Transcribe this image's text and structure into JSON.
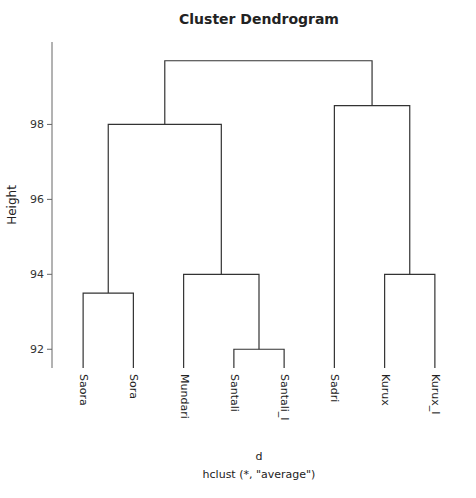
{
  "chart_data": {
    "type": "dendrogram",
    "title": "Cluster Dendrogram",
    "xlabel": [
      "d",
      "hclust (*, \"average\")"
    ],
    "ylabel": "Height",
    "categories": [
      "Saora",
      "Sora",
      "Mundari",
      "Santali",
      "Santali_I",
      "Sadri",
      "Kurux",
      "Kurux_I"
    ],
    "merges": [
      {
        "left": "Santali",
        "right": "Santali_I",
        "height": 92.0
      },
      {
        "left": "Saora",
        "right": "Sora",
        "height": 93.5
      },
      {
        "left": "Mundari",
        "right": 0,
        "height": 94.0
      },
      {
        "left": "Kurux",
        "right": "Kurux_I",
        "height": 94.0
      },
      {
        "left": 1,
        "right": 2,
        "height": 98.0
      },
      {
        "left": "Sadri",
        "right": 3,
        "height": 98.5
      },
      {
        "left": 4,
        "right": 5,
        "height": 99.7
      }
    ],
    "color": "#333333",
    "ylim": [
      91.5,
      100.2
    ],
    "yticks": [
      92,
      94,
      96,
      98
    ],
    "grid": false
  }
}
